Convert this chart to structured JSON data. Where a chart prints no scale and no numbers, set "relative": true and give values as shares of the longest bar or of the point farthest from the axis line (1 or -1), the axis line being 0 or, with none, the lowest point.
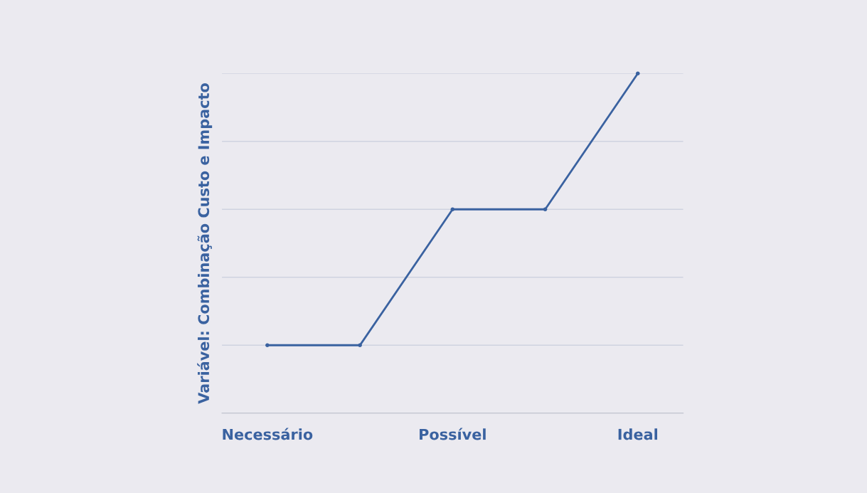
{
  "chart_data": {
    "type": "line",
    "ylabel": "Variável: Combinação Custo e Impacto",
    "relative": true,
    "categories": [
      "Necessário",
      null,
      "Possível",
      null,
      "Ideal"
    ],
    "series": [
      {
        "color": "#3a62a0",
        "values": [
          0.2,
          0.2,
          0.6,
          0.6,
          1
        ]
      }
    ],
    "grid": "y",
    "marker": "circle",
    "line_style": "solid"
  }
}
